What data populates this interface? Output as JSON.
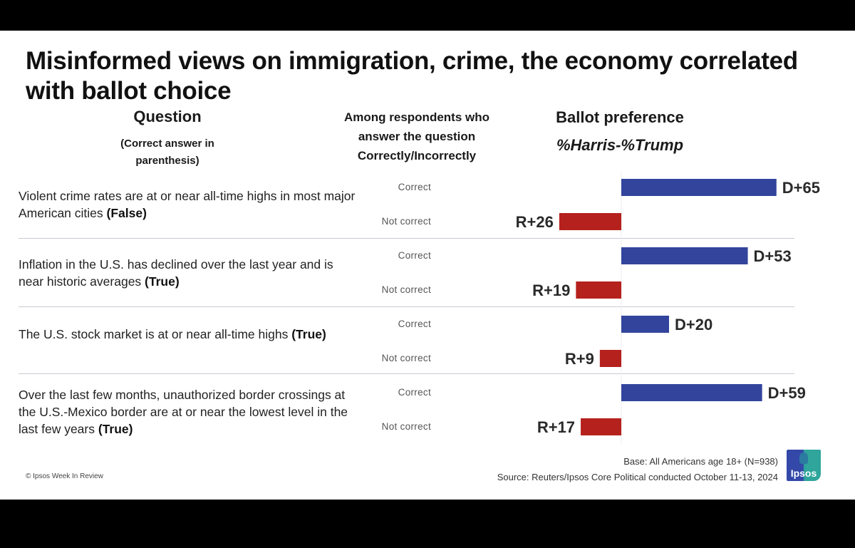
{
  "title": "Misinformed views on immigration, crime, the economy correlated with ballot choice",
  "headers": {
    "question": "Question",
    "question_sub": "(Correct answer in parenthesis)",
    "respondents": "Among respondents who answer the question Correctly/Incorrectly",
    "ballot": "Ballot preference",
    "ballot_sub": "%Harris-%Trump"
  },
  "questions": [
    {
      "text": "Violent crime rates are at or near all-time highs in most major American cities ",
      "answer": "(False)"
    },
    {
      "text": "Inflation in the U.S. has declined over the last year and is near historic averages ",
      "answer": "(True)"
    },
    {
      "text": "The U.S. stock market is at or near all-time highs ",
      "answer": "(True)"
    },
    {
      "text": "Over the last few months, unauthorized border crossings at the U.S.-Mexico border are at or near the lowest level in the last few years ",
      "answer": "(True)"
    }
  ],
  "response_labels": {
    "correct": "Correct",
    "not_correct": "Not correct"
  },
  "chart_data": {
    "type": "bar",
    "orientation": "horizontal-diverging",
    "title": "Ballot preference",
    "subtitle": "%Harris-%Trump",
    "categories": [
      "Violent crime rates at or near all-time highs (False)",
      "Inflation has declined, near historic averages (True)",
      "Stock market at or near all-time highs (True)",
      "Border crossings at or near lowest level (True)"
    ],
    "series": [
      {
        "name": "Correct",
        "values": [
          65,
          53,
          20,
          59
        ],
        "labels": [
          "D+65",
          "D+53",
          "D+20",
          "D+59"
        ],
        "color": "#32449c"
      },
      {
        "name": "Not correct",
        "values": [
          -26,
          -19,
          -9,
          -17
        ],
        "labels": [
          "R+26",
          "R+19",
          "R+9",
          "R+17"
        ],
        "color": "#b5211d"
      }
    ],
    "xlim": [
      -30,
      70
    ],
    "xlabel": "",
    "ylabel": "",
    "grid": false,
    "legend": "none"
  },
  "footer": {
    "copyright": "© Ipsos Week In Review",
    "base": "Base: All Americans age 18+ (N=938)",
    "source": "Source: Reuters/Ipsos Core Political conducted October 11-13, 2024",
    "logo_text": "Ipsos"
  }
}
